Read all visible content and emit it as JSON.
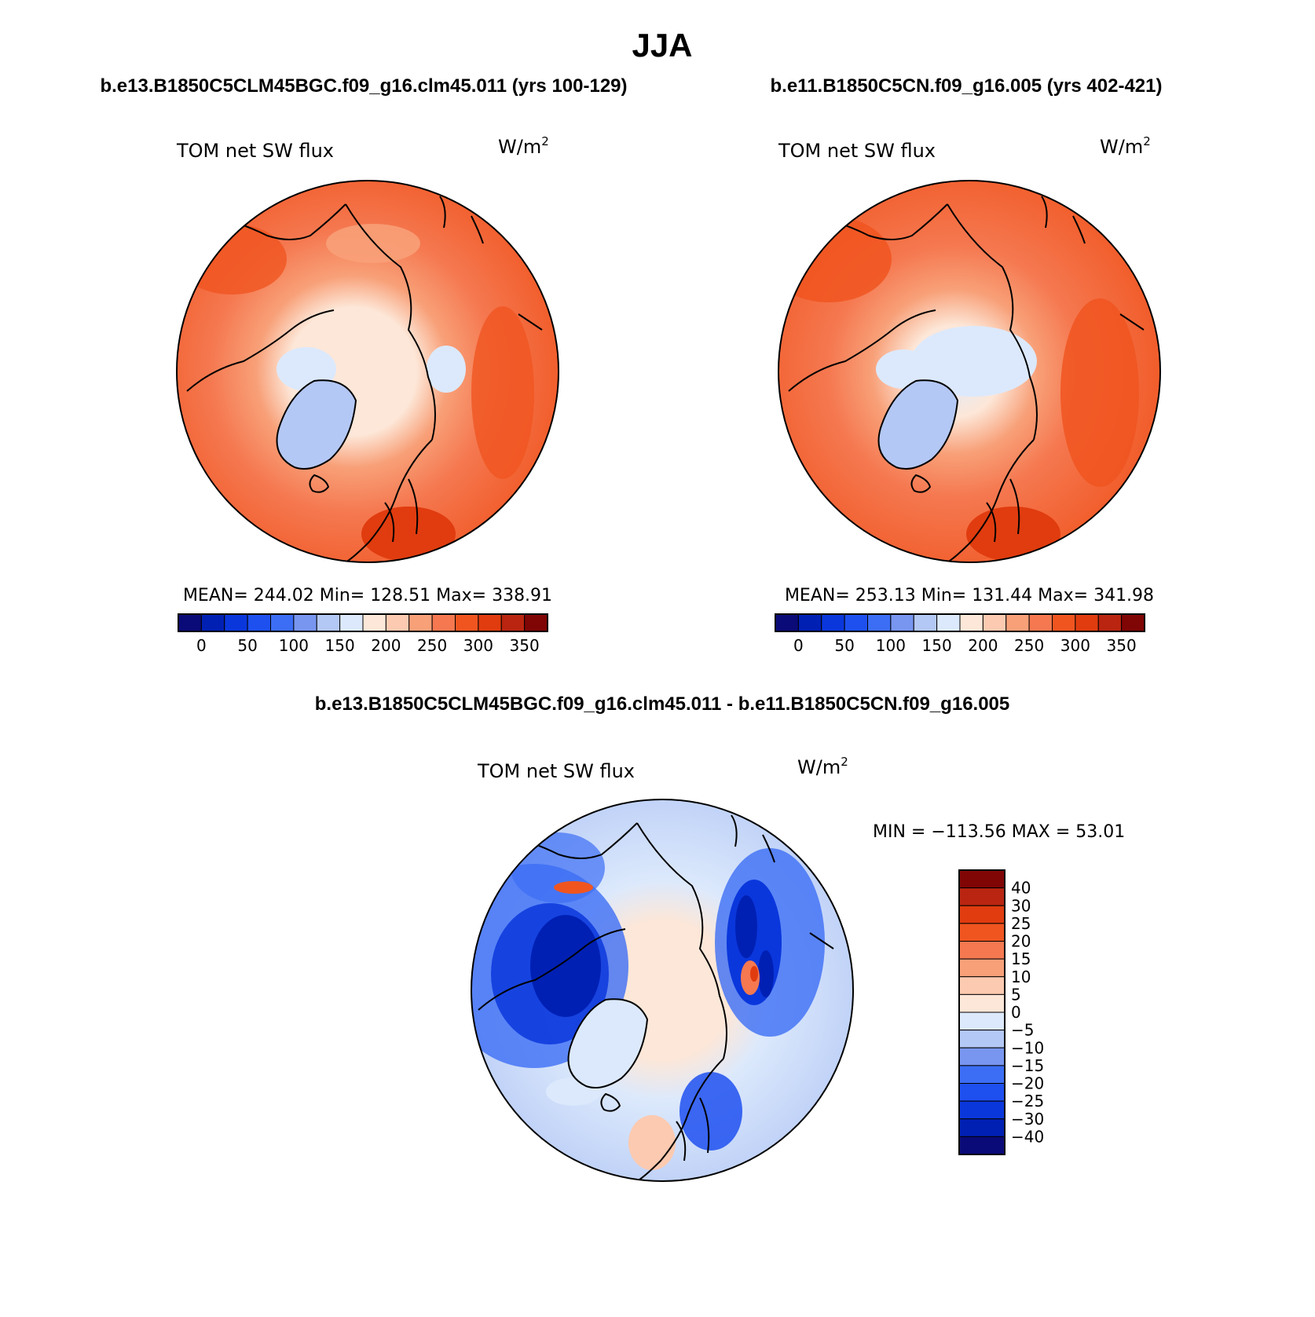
{
  "main_title": "JJA",
  "left_panel": {
    "case_title": "b.e13.B1850C5CLM45BGC.f09_g16.clm45.011 (yrs 100-129)",
    "variable": "TOM net SW flux",
    "units_base": "W/m",
    "units_exp": "2",
    "stats": "MEAN= 244.02   Min= 128.51   Max= 338.91"
  },
  "right_panel": {
    "case_title": "b.e11.B1850C5CN.f09_g16.005 (yrs 402-421)",
    "variable": "TOM net SW flux",
    "units_base": "W/m",
    "units_exp": "2",
    "stats": "MEAN= 253.13   Min= 131.44   Max= 341.98"
  },
  "diff_panel": {
    "case_title": "b.e13.B1850C5CLM45BGC.f09_g16.clm45.011 - b.e11.B1850C5CN.f09_g16.005",
    "variable": "TOM net SW flux",
    "units_base": "W/m",
    "units_exp": "2",
    "stats": "MIN = −113.56 MAX =   53.01"
  },
  "abs_colorbar": {
    "colors": [
      "#0a0a78",
      "#0020b4",
      "#0a37dc",
      "#1e50f0",
      "#3c6ef5",
      "#7896f0",
      "#b4c8f5",
      "#dce9fc",
      "#fde7d8",
      "#fccab0",
      "#f8a078",
      "#f57850",
      "#f05520",
      "#e03c0f",
      "#b92510",
      "#800505"
    ],
    "tick_labels": [
      "0",
      "50",
      "100",
      "150",
      "200",
      "250",
      "300",
      "350"
    ]
  },
  "diff_colorbar": {
    "colors_top_to_bottom": [
      "#800505",
      "#b92510",
      "#e03c0f",
      "#f05520",
      "#f57850",
      "#f8a078",
      "#fccab0",
      "#fde7d8",
      "#dce9fc",
      "#b4c8f5",
      "#7896f0",
      "#3c6ef5",
      "#1e50f0",
      "#0a37dc",
      "#0020b4",
      "#0a0a78"
    ],
    "tick_labels": [
      "40",
      "30",
      "25",
      "20",
      "15",
      "10",
      "5",
      "0",
      "−5",
      "−10",
      "−15",
      "−20",
      "−25",
      "−30",
      "−40"
    ]
  }
}
